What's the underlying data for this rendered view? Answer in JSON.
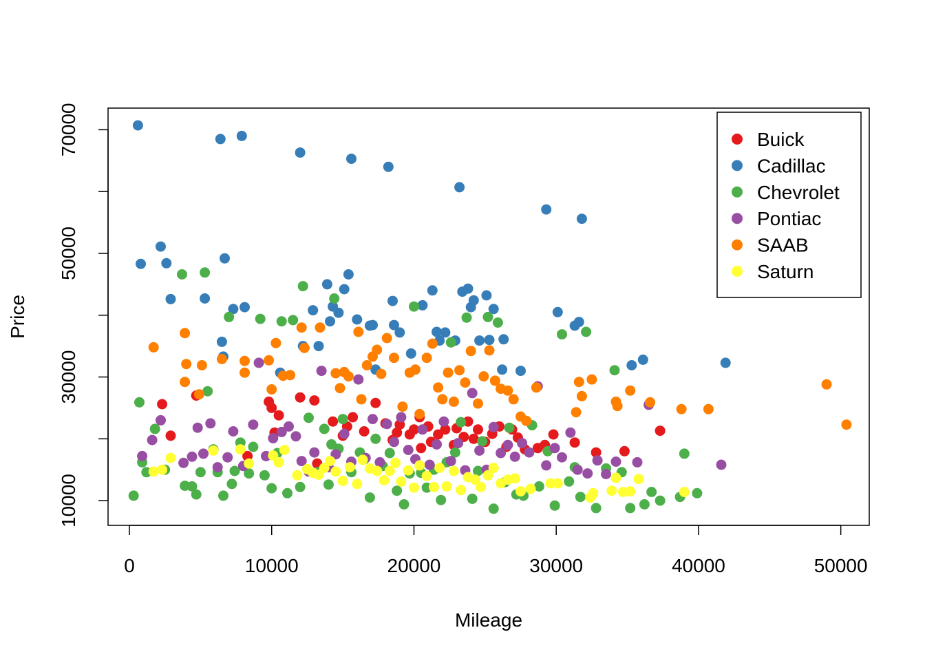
{
  "chart_data": {
    "type": "scatter",
    "title": "",
    "xlabel": "Mileage",
    "ylabel": "Price",
    "xlim": [
      -1500,
      52000
    ],
    "ylim": [
      6000,
      73500
    ],
    "x_ticks": [
      0,
      10000,
      20000,
      30000,
      40000,
      50000
    ],
    "x_tick_labels": [
      "0",
      "10000",
      "20000",
      "30000",
      "40000",
      "50000"
    ],
    "y_ticks": [
      10000,
      20000,
      30000,
      40000,
      50000,
      60000,
      70000
    ],
    "y_tick_labels": [
      "10000",
      "",
      "30000",
      "",
      "50000",
      "",
      "70000"
    ],
    "legend_position": "top-right",
    "grid": false,
    "series": [
      {
        "name": "Buick",
        "color": "#E41A1C",
        "x": [
          2300,
          2900,
          4700,
          8300,
          9800,
          10000,
          10200,
          10500,
          12000,
          13000,
          13200,
          14300,
          15000,
          15300,
          15700,
          16500,
          17300,
          18000,
          18500,
          18800,
          19000,
          19700,
          20000,
          20400,
          20500,
          21000,
          21200,
          21700,
          22200,
          22800,
          23000,
          23500,
          23800,
          24200,
          24500,
          25000,
          25500,
          26000,
          26500,
          26900,
          27300,
          27800,
          28700,
          29200,
          29800,
          31300,
          32800,
          34800,
          37300
        ],
        "y": [
          25600,
          20500,
          27000,
          17200,
          26000,
          25000,
          21000,
          23800,
          26700,
          26200,
          16000,
          22800,
          20500,
          22000,
          23500,
          21200,
          25800,
          22500,
          19800,
          21000,
          22300,
          20700,
          21500,
          23500,
          18500,
          22000,
          19500,
          20700,
          21500,
          19000,
          21700,
          20300,
          22800,
          20000,
          21500,
          19500,
          20800,
          22000,
          18700,
          21500,
          20200,
          18300,
          18500,
          19000,
          20700,
          19400,
          17800,
          18000,
          21300
        ]
      },
      {
        "name": "Cadillac",
        "color": "#377EB8",
        "x": [
          600,
          800,
          2200,
          2600,
          2900,
          5300,
          6400,
          6500,
          6600,
          6700,
          7300,
          7900,
          8100,
          10600,
          12000,
          12200,
          12900,
          13300,
          13900,
          14100,
          14300,
          14700,
          15100,
          15400,
          15600,
          16000,
          16900,
          17100,
          17300,
          18200,
          18500,
          18600,
          19000,
          19800,
          20600,
          21300,
          21600,
          21800,
          22200,
          22900,
          23200,
          23400,
          23800,
          24000,
          24200,
          24600,
          25100,
          25300,
          25600,
          26200,
          26300,
          27500,
          29300,
          30100,
          31300,
          31600,
          31800,
          35300,
          36100,
          41900
        ],
        "y": [
          70700,
          48300,
          51100,
          48400,
          42600,
          42700,
          68500,
          35700,
          33300,
          49200,
          41000,
          69000,
          41300,
          30700,
          66300,
          35000,
          40800,
          35000,
          45000,
          39000,
          41400,
          40400,
          44200,
          46600,
          65300,
          39300,
          38300,
          38400,
          31200,
          64000,
          42300,
          38400,
          37200,
          33800,
          41600,
          44000,
          37300,
          35900,
          37200,
          35900,
          60700,
          43800,
          44300,
          41300,
          42400,
          35900,
          43200,
          36000,
          41000,
          31200,
          36100,
          31000,
          57100,
          40500,
          38300,
          38900,
          55600,
          31900,
          32800,
          32300
        ]
      },
      {
        "name": "Chevrolet",
        "color": "#4DAF4A",
        "x": [
          300,
          700,
          900,
          1200,
          1800,
          2500,
          3700,
          3900,
          4400,
          4700,
          5000,
          5300,
          5500,
          5900,
          6200,
          6600,
          7000,
          7200,
          7400,
          7800,
          8400,
          8700,
          9200,
          9500,
          10000,
          10400,
          10700,
          11100,
          11500,
          12000,
          12200,
          12600,
          13200,
          13700,
          14000,
          14200,
          14400,
          14700,
          15000,
          15600,
          16200,
          16500,
          16900,
          17300,
          17800,
          18300,
          18800,
          19300,
          19700,
          20000,
          20500,
          20900,
          21400,
          21900,
          22300,
          22600,
          22900,
          23300,
          23700,
          24100,
          24500,
          24800,
          25200,
          25600,
          25900,
          26400,
          26700,
          27200,
          27700,
          28300,
          28800,
          29400,
          29900,
          30400,
          30900,
          31300,
          31700,
          32100,
          32800,
          33500,
          34100,
          34600,
          35200,
          36200,
          36700,
          37300,
          38700,
          39000,
          39900
        ],
        "y": [
          10800,
          25900,
          16200,
          14600,
          21600,
          15000,
          46600,
          12400,
          12300,
          11000,
          14600,
          46900,
          27700,
          18300,
          14600,
          10800,
          39700,
          12700,
          14800,
          19400,
          14400,
          18700,
          39400,
          14100,
          12000,
          17700,
          39000,
          11200,
          39200,
          12200,
          44700,
          23400,
          14600,
          21600,
          12600,
          19100,
          42700,
          18400,
          23200,
          14600,
          17800,
          16700,
          10500,
          20000,
          15600,
          17700,
          11600,
          9400,
          14400,
          41400,
          14500,
          12100,
          15000,
          10100,
          16200,
          35600,
          17800,
          22700,
          39600,
          10300,
          14800,
          19600,
          39700,
          8700,
          38800,
          13000,
          21800,
          11000,
          10800,
          22200,
          12300,
          18000,
          9200,
          36900,
          13100,
          15400,
          10600,
          37300,
          8800,
          15200,
          31100,
          14600,
          8800,
          9400,
          11400,
          10000,
          10600,
          17600,
          11200
        ]
      },
      {
        "name": "Pontiac",
        "color": "#984EA3",
        "x": [
          900,
          1600,
          2200,
          3800,
          4400,
          4800,
          5200,
          5700,
          6200,
          6900,
          7300,
          8000,
          8700,
          9100,
          9600,
          10100,
          10700,
          11200,
          11700,
          12100,
          12600,
          13000,
          13500,
          14000,
          14500,
          15100,
          15600,
          16100,
          16600,
          17100,
          17600,
          18100,
          18600,
          19100,
          19600,
          20100,
          20600,
          21100,
          21600,
          22100,
          22600,
          23100,
          23600,
          24100,
          24600,
          25100,
          25600,
          26100,
          26600,
          27100,
          27600,
          28100,
          28700,
          29300,
          29900,
          30400,
          31000,
          31500,
          32200,
          32900,
          33500,
          34200,
          35700,
          36500,
          41600
        ],
        "y": [
          17200,
          19800,
          23000,
          16100,
          17100,
          21800,
          17600,
          22500,
          15400,
          17000,
          21200,
          15600,
          22300,
          32300,
          17200,
          20100,
          21100,
          22000,
          20400,
          16400,
          14700,
          17800,
          31000,
          15400,
          17500,
          20800,
          16300,
          29600,
          16900,
          23200,
          16200,
          22400,
          19500,
          23500,
          18200,
          16700,
          21500,
          15800,
          19100,
          22800,
          16400,
          19300,
          14900,
          27400,
          18100,
          15000,
          21900,
          17700,
          19000,
          17100,
          19300,
          17800,
          28500,
          15700,
          18500,
          17000,
          21000,
          15000,
          14400,
          16500,
          14300,
          16300,
          16200,
          25500,
          15800
        ]
      },
      {
        "name": "SAAB",
        "color": "#FF7F00",
        "x": [
          1700,
          3900,
          4000,
          3900,
          4900,
          5100,
          6500,
          8100,
          8100,
          9800,
          10000,
          10300,
          10800,
          11300,
          12100,
          12300,
          13400,
          14500,
          14800,
          15100,
          15400,
          16100,
          16300,
          16700,
          17100,
          17400,
          17700,
          18100,
          18600,
          19200,
          19700,
          20100,
          20400,
          20900,
          21300,
          21700,
          22000,
          22400,
          22800,
          23200,
          23600,
          24000,
          24500,
          24900,
          25300,
          25700,
          26100,
          26600,
          27000,
          27500,
          27900,
          28600,
          31400,
          31600,
          31800,
          32500,
          34200,
          34300,
          35200,
          36600,
          38800,
          40700,
          49000,
          50400
        ],
        "y": [
          34800,
          37100,
          32100,
          29200,
          27200,
          31900,
          32900,
          32600,
          30700,
          32700,
          28000,
          35500,
          30200,
          30300,
          38000,
          34700,
          38000,
          30600,
          28200,
          30800,
          30100,
          37300,
          26400,
          31900,
          33300,
          34400,
          30500,
          36300,
          33100,
          25200,
          30700,
          31200,
          24000,
          33100,
          35400,
          28300,
          26400,
          30700,
          26000,
          31100,
          29100,
          34200,
          25700,
          30100,
          34300,
          29400,
          28100,
          27800,
          26400,
          23600,
          22900,
          28300,
          24300,
          29200,
          26900,
          29600,
          26000,
          25300,
          27800,
          25900,
          24800,
          24800,
          28800,
          22300
        ]
      },
      {
        "name": "Saturn",
        "color": "#FFFF33",
        "x": [
          1700,
          2300,
          2900,
          5900,
          7800,
          8400,
          10100,
          10500,
          10900,
          11800,
          12500,
          12900,
          13300,
          13700,
          14100,
          14500,
          15000,
          15500,
          16000,
          16400,
          16900,
          17400,
          17900,
          18300,
          18700,
          19100,
          19600,
          20000,
          20400,
          20900,
          21400,
          21800,
          22300,
          22800,
          23300,
          23800,
          24300,
          24700,
          25200,
          25600,
          26100,
          26600,
          27100,
          27500,
          28200,
          29600,
          30100,
          32400,
          32600,
          33900,
          34200,
          34700,
          35200,
          35800,
          39000
        ],
        "y": [
          14700,
          15000,
          16900,
          18100,
          18300,
          16000,
          17300,
          16200,
          18200,
          14100,
          15100,
          14500,
          14200,
          15300,
          16400,
          14700,
          13200,
          15400,
          12700,
          16600,
          15200,
          14800,
          13300,
          14800,
          16100,
          13100,
          14900,
          12100,
          15700,
          14000,
          12200,
          15300,
          12300,
          14800,
          11700,
          13800,
          13400,
          12200,
          14100,
          15300,
          12800,
          13400,
          13600,
          11500,
          11900,
          12800,
          12800,
          10500,
          11200,
          11600,
          13700,
          11400,
          11500,
          13500,
          11400
        ]
      }
    ]
  }
}
